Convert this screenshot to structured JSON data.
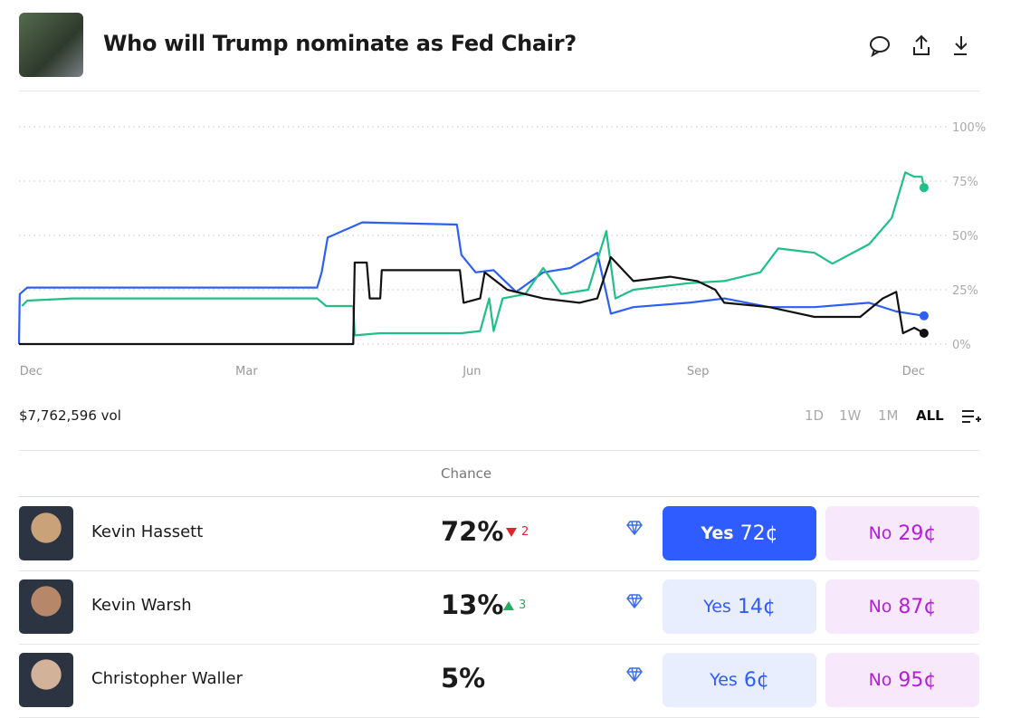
{
  "header": {
    "title": "Who will Trump nominate as Fed Chair?"
  },
  "chart_data": {
    "type": "line",
    "xlim": [
      -0.16,
      12.12
    ],
    "xticks": [
      {
        "value": 0,
        "label": "Dec"
      },
      {
        "value": 2.87,
        "label": "Mar"
      },
      {
        "value": 5.87,
        "label": "Jun"
      },
      {
        "value": 8.88,
        "label": "Sep"
      },
      {
        "value": 11.75,
        "label": "Dec"
      }
    ],
    "ylim": [
      0,
      100
    ],
    "yticks": [
      {
        "value": 0,
        "label": "0%"
      },
      {
        "value": 25,
        "label": "25%"
      },
      {
        "value": 50,
        "label": "50%"
      },
      {
        "value": 75,
        "label": "75%"
      },
      {
        "value": 100,
        "label": "100%"
      }
    ],
    "grid": true,
    "series": [
      {
        "color": "#2d5ff5",
        "x": [
          -0.16,
          -0.15,
          -0.05,
          3.81,
          3.87,
          3.95,
          4.41,
          5.67,
          5.73,
          5.92,
          6.16,
          6.46,
          6.82,
          7.18,
          7.54,
          7.72,
          8.02,
          8.75,
          9.23,
          9.83,
          10.43,
          11.16,
          11.52,
          11.89
        ],
        "values": [
          0,
          23,
          26,
          26,
          33,
          49,
          56,
          55,
          41,
          33,
          34,
          24,
          33,
          35,
          42,
          14,
          17,
          19,
          21,
          17,
          17,
          19,
          15,
          13
        ]
      },
      {
        "color": "#1fbf86",
        "x": [
          -0.12,
          -0.05,
          0.55,
          3.81,
          3.93,
          4.29,
          4.31,
          4.65,
          5.73,
          5.98,
          6.1,
          6.16,
          6.28,
          6.58,
          6.82,
          7.06,
          7.42,
          7.66,
          7.78,
          8.02,
          8.75,
          9.23,
          9.71,
          9.95,
          10.43,
          10.67,
          11.16,
          11.46,
          11.64,
          11.76,
          11.86,
          11.89
        ],
        "values": [
          17.5,
          20,
          21,
          21,
          17.5,
          17.5,
          4,
          5,
          5,
          6,
          21,
          6,
          21,
          23,
          35,
          23,
          25,
          52,
          21,
          25,
          28,
          29,
          33,
          44,
          42,
          37,
          46,
          58,
          79,
          77,
          77,
          72
        ]
      },
      {
        "color": "#111111",
        "x": [
          -0.16,
          4.29,
          4.31,
          4.47,
          4.51,
          4.65,
          4.67,
          5.71,
          5.76,
          5.98,
          6.04,
          6.34,
          6.82,
          7.3,
          7.54,
          7.72,
          8.02,
          8.51,
          8.87,
          9.11,
          9.23,
          9.83,
          10.43,
          11.04,
          11.34,
          11.52,
          11.61,
          11.76,
          11.89
        ],
        "values": [
          0,
          0,
          37.5,
          37.5,
          21,
          21,
          34,
          34,
          19,
          21,
          33,
          25,
          21,
          19,
          21,
          40,
          29,
          31,
          29,
          25,
          19,
          17,
          12.5,
          12.5,
          21,
          24,
          5,
          7.5,
          5
        ]
      }
    ]
  },
  "volume": "$7,762,596 vol",
  "ranges": [
    "1D",
    "1W",
    "1M",
    "ALL"
  ],
  "table": {
    "header": "Chance",
    "rows": [
      {
        "name": "Kevin Hassett",
        "chance": "72%",
        "change": "2",
        "trend": "down",
        "yes": "Yes",
        "yes_price": "72¢",
        "no": "No",
        "no_price": "29¢",
        "active": true
      },
      {
        "name": "Kevin Warsh",
        "chance": "13%",
        "change": "3",
        "trend": "up",
        "yes": "Yes",
        "yes_price": "14¢",
        "no": "No",
        "no_price": "87¢",
        "active": false
      },
      {
        "name": "Christopher Waller",
        "chance": "5%",
        "yes": "Yes",
        "yes_price": "6¢",
        "no": "No",
        "no_price": "95¢",
        "active": false
      }
    ]
  }
}
